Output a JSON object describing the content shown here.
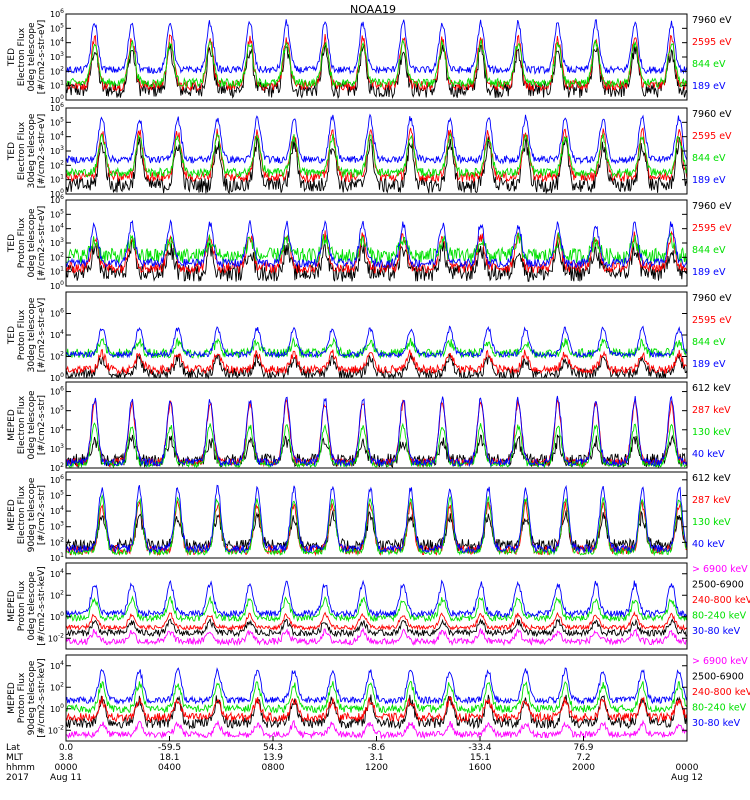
{
  "title": "NOAA19",
  "chart_data": [
    {
      "type": "line",
      "panel": 1,
      "ylabel": [
        "TED",
        "Electron Flux",
        "0deg telescope",
        "[#/cm2-s-str-eV]"
      ],
      "yticks": [
        "10^0",
        "10^1",
        "10^2",
        "10^3",
        "10^4",
        "10^5",
        "10^6"
      ],
      "ylim_log10": [
        0,
        6
      ],
      "series": [
        {
          "name": "7960 eV",
          "color": "#000000",
          "baseline": 0.7,
          "peak": 3.5,
          "noise": 0.55
        },
        {
          "name": "2595 eV",
          "color": "#ff0000",
          "baseline": 1.0,
          "peak": 4.3,
          "noise": 0.35
        },
        {
          "name": "844 eV",
          "color": "#00e000",
          "baseline": 1.2,
          "peak": 4.0,
          "noise": 0.3
        },
        {
          "name": "189 eV",
          "color": "#0000ff",
          "baseline": 2.1,
          "peak": 5.4,
          "noise": 0.25
        }
      ]
    },
    {
      "type": "line",
      "panel": 2,
      "ylabel": [
        "TED",
        "Electron Flux",
        "30deg telescope",
        "[#/cm2-s-str-eV]"
      ],
      "yticks": [
        "10^0",
        "10^1",
        "10^2",
        "10^3",
        "10^4",
        "10^5",
        "10^6"
      ],
      "ylim_log10": [
        0,
        6
      ],
      "series": [
        {
          "name": "7960 eV",
          "color": "#000000",
          "baseline": 0.6,
          "peak": 3.5,
          "noise": 0.55
        },
        {
          "name": "2595 eV",
          "color": "#ff0000",
          "baseline": 1.2,
          "peak": 4.3,
          "noise": 0.35
        },
        {
          "name": "844 eV",
          "color": "#00e000",
          "baseline": 1.5,
          "peak": 4.0,
          "noise": 0.3
        },
        {
          "name": "189 eV",
          "color": "#0000ff",
          "baseline": 2.4,
          "peak": 5.3,
          "noise": 0.25
        }
      ]
    },
    {
      "type": "line",
      "panel": 3,
      "ylabel": [
        "TED",
        "Proton Flux",
        "0deg telescope",
        "[#/cm2-s-str-eV]"
      ],
      "yticks": [
        "10^0",
        "10^1",
        "10^2",
        "10^3",
        "10^4",
        "10^5",
        "10^6"
      ],
      "ylim_log10": [
        0,
        6
      ],
      "series": [
        {
          "name": "7960 eV",
          "color": "#000000",
          "baseline": 0.9,
          "peak": 2.6,
          "noise": 0.6
        },
        {
          "name": "2595 eV",
          "color": "#ff0000",
          "baseline": 1.3,
          "peak": 3.5,
          "noise": 0.4
        },
        {
          "name": "844 eV",
          "color": "#00e000",
          "baseline": 2.1,
          "peak": 3.2,
          "noise": 0.55
        },
        {
          "name": "189 eV",
          "color": "#0000ff",
          "baseline": 1.6,
          "peak": 4.3,
          "noise": 0.3
        }
      ]
    },
    {
      "type": "line",
      "panel": 4,
      "ylabel": [
        "TED",
        "Proton Flux",
        "30deg telescope",
        "[#/cm2-s-str-eV]"
      ],
      "yticks": [
        "10^0",
        "10^2",
        "10^4",
        "10^6"
      ],
      "ylim_log10": [
        0,
        8
      ],
      "series": [
        {
          "name": "7960 eV",
          "color": "#000000",
          "baseline": 0.4,
          "peak": 1.8,
          "noise": 0.5
        },
        {
          "name": "2595 eV",
          "color": "#ff0000",
          "baseline": 0.8,
          "peak": 2.3,
          "noise": 0.4
        },
        {
          "name": "844 eV",
          "color": "#00e000",
          "baseline": 2.3,
          "peak": 3.3,
          "noise": 0.45
        },
        {
          "name": "189 eV",
          "color": "#0000ff",
          "baseline": 2.2,
          "peak": 4.6,
          "noise": 0.25
        }
      ]
    },
    {
      "type": "line",
      "panel": 5,
      "ylabel": [
        "MEPED",
        "Electron Flux",
        "0deg telescope",
        "[#/cm2-s-str]"
      ],
      "yticks": [
        "10^2",
        "10^3",
        "10^4",
        "10^5",
        "10^6"
      ],
      "ylim_log10": [
        2,
        6.5
      ],
      "series": [
        {
          "name": "612 keV",
          "color": "#000000",
          "baseline": 2.4,
          "peak": 3.4,
          "noise": 0.35
        },
        {
          "name": "287 keV",
          "color": "#ff0000",
          "baseline": 2.3,
          "peak": 5.4,
          "noise": 0.2
        },
        {
          "name": "130 keV",
          "color": "#00e000",
          "baseline": 2.2,
          "peak": 4.2,
          "noise": 0.15
        },
        {
          "name": "40 keV",
          "color": "#0000ff",
          "baseline": 2.3,
          "peak": 5.6,
          "noise": 0.2
        }
      ]
    },
    {
      "type": "line",
      "panel": 6,
      "ylabel": [
        "MEPED",
        "Electron Flux",
        "90deg telescope",
        "[#/cm2-s-str]"
      ],
      "yticks": [
        "10^1",
        "10^2",
        "10^3",
        "10^4",
        "10^5",
        "10^6"
      ],
      "ylim_log10": [
        1,
        6.5
      ],
      "series": [
        {
          "name": "612 keV",
          "color": "#000000",
          "baseline": 1.8,
          "peak": 3.7,
          "noise": 0.4
        },
        {
          "name": "287 keV",
          "color": "#ff0000",
          "baseline": 1.5,
          "peak": 4.4,
          "noise": 0.3
        },
        {
          "name": "130 keV",
          "color": "#00e000",
          "baseline": 1.4,
          "peak": 4.8,
          "noise": 0.2
        },
        {
          "name": "40 keV",
          "color": "#0000ff",
          "baseline": 1.6,
          "peak": 5.5,
          "noise": 0.25
        }
      ]
    },
    {
      "type": "line",
      "panel": 7,
      "ylabel": [
        "MEPED",
        "Proton Flux",
        "0deg telescope",
        "[#/cm2-s-str-keV]"
      ],
      "yticks": [
        "10^-2",
        "10^0",
        "10^2",
        "10^4"
      ],
      "ylim_log10": [
        -3,
        5
      ],
      "series": [
        {
          "name": "> 6900 keV",
          "color": "#ff00ff",
          "baseline": -2.3,
          "peak": -1.4,
          "noise": 0.3
        },
        {
          "name": "2500-6900",
          "color": "#000000",
          "baseline": -1.5,
          "peak": -0.5,
          "noise": 0.3
        },
        {
          "name": "240-800 keV",
          "color": "#ff0000",
          "baseline": -1.0,
          "peak": 0.2,
          "noise": 0.2
        },
        {
          "name": "80-240 keV",
          "color": "#00e000",
          "baseline": -0.1,
          "peak": 1.6,
          "noise": 0.3
        },
        {
          "name": "30-80 keV",
          "color": "#0000ff",
          "baseline": 0.3,
          "peak": 3.1,
          "noise": 0.3
        }
      ]
    },
    {
      "type": "line",
      "panel": 8,
      "ylabel": [
        "MEPED",
        "Proton Flux",
        "90deg telescope",
        "[#/cm2-s-str-keV]"
      ],
      "yticks": [
        "10^-2",
        "10^0",
        "10^2",
        "10^4"
      ],
      "ylim_log10": [
        -3,
        5
      ],
      "series": [
        {
          "name": "> 6900 keV",
          "color": "#ff00ff",
          "baseline": -2.4,
          "peak": -1.4,
          "noise": 0.3
        },
        {
          "name": "2500-6900",
          "color": "#000000",
          "baseline": -1.3,
          "peak": 0.9,
          "noise": 0.5
        },
        {
          "name": "240-800 keV",
          "color": "#ff0000",
          "baseline": -0.8,
          "peak": 0.8,
          "noise": 0.4
        },
        {
          "name": "80-240 keV",
          "color": "#00e000",
          "baseline": 0.0,
          "peak": 2.3,
          "noise": 0.35
        },
        {
          "name": "30-80 keV",
          "color": "#0000ff",
          "baseline": 0.8,
          "peak": 3.6,
          "noise": 0.3
        }
      ]
    }
  ],
  "x_axis": {
    "row_labels": [
      "Lat",
      "MLT",
      "hhmm",
      "2017"
    ],
    "ticks": [
      {
        "lat": "0.0",
        "mlt": "3.8",
        "hhmm": "0000",
        "date": "Aug 11"
      },
      {
        "lat": "-59.5",
        "mlt": "18.1",
        "hhmm": "0400",
        "date": ""
      },
      {
        "lat": "54.3",
        "mlt": "13.9",
        "hhmm": "0800",
        "date": ""
      },
      {
        "lat": "-8.6",
        "mlt": "3.1",
        "hhmm": "1200",
        "date": ""
      },
      {
        "lat": "-33.4",
        "mlt": "15.1",
        "hhmm": "1600",
        "date": ""
      },
      {
        "lat": "76.9",
        "mlt": "7.2",
        "hhmm": "2000",
        "date": ""
      },
      {
        "lat": "",
        "mlt": "",
        "hhmm": "0000",
        "date": "Aug 12"
      }
    ]
  },
  "orbit_peaks": [
    0.046,
    0.106,
    0.168,
    0.232,
    0.296,
    0.355,
    0.417,
    0.478,
    0.543,
    0.606,
    0.668,
    0.728,
    0.792,
    0.853,
    0.916,
    0.975
  ]
}
